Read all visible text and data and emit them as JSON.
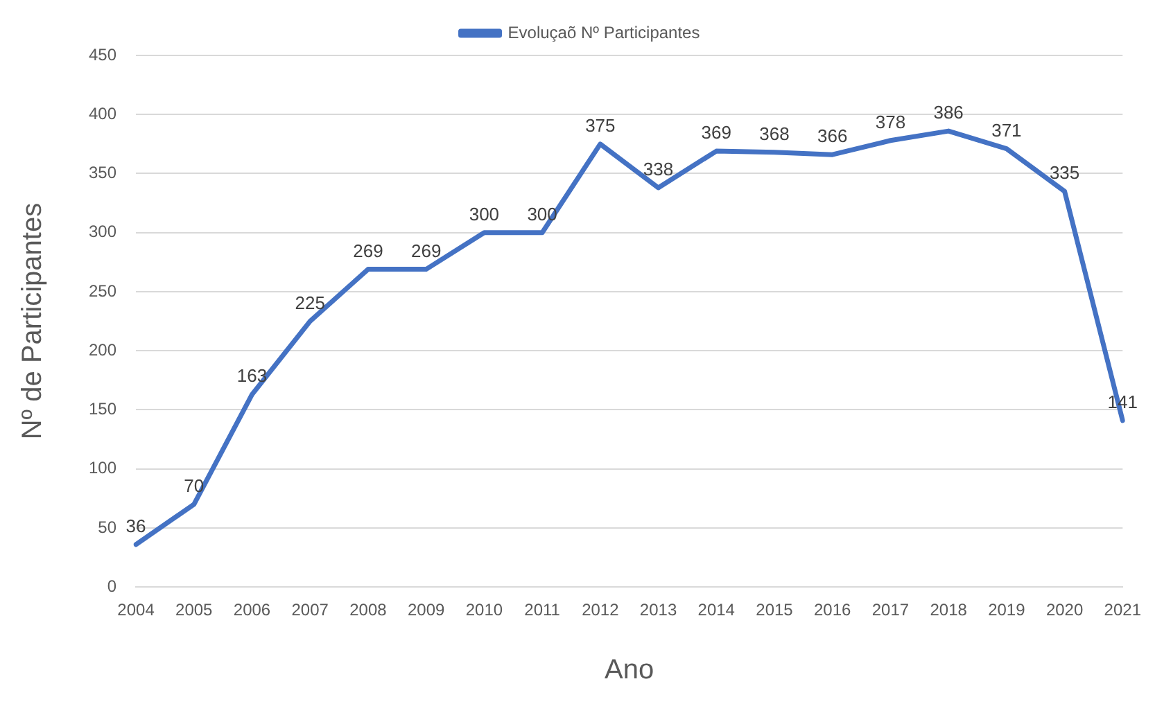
{
  "chart_data": {
    "type": "line",
    "xlabel": "Ano",
    "ylabel": "Nº de Participantes",
    "categories": [
      "2004",
      "2005",
      "2006",
      "2007",
      "2008",
      "2009",
      "2010",
      "2011",
      "2012",
      "2013",
      "2014",
      "2015",
      "2016",
      "2017",
      "2018",
      "2019",
      "2020",
      "2021"
    ],
    "series": [
      {
        "name": "Evoluçaõ Nº Participantes",
        "color": "#4472c4",
        "values": [
          36,
          70,
          163,
          225,
          269,
          269,
          300,
          300,
          375,
          338,
          369,
          368,
          366,
          378,
          386,
          371,
          335,
          141
        ]
      }
    ],
    "ylim": [
      0,
      450
    ],
    "yticks": [
      0,
      50,
      100,
      150,
      200,
      250,
      300,
      350,
      400,
      450
    ],
    "grid": "y",
    "legend": "top",
    "marker": "none",
    "line_style": "solid",
    "data_labels": true
  }
}
